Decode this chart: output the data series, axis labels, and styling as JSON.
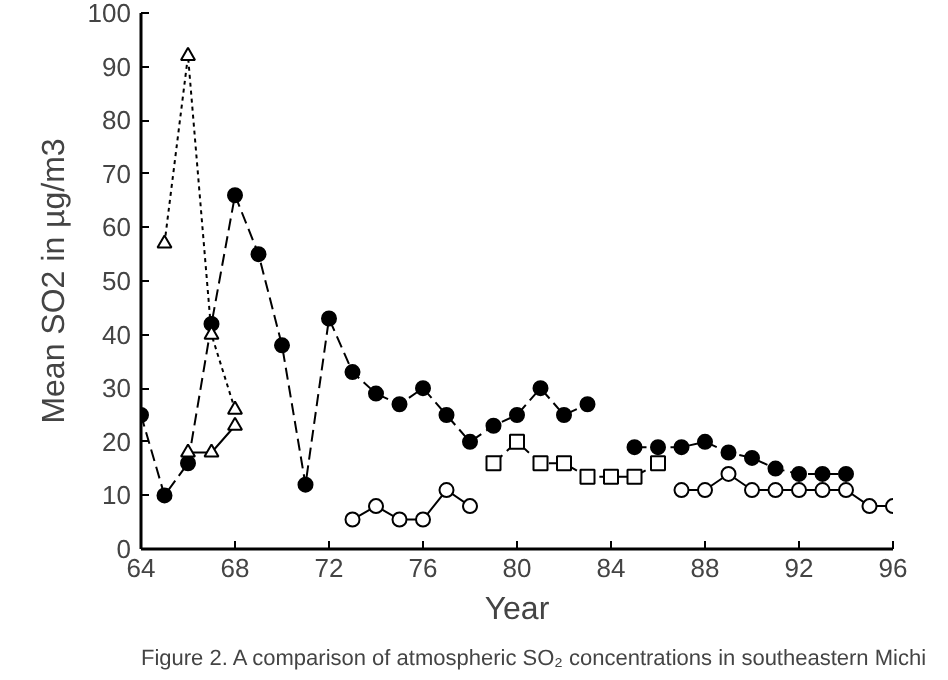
{
  "chart_data": {
    "type": "line",
    "xlabel": "Year",
    "ylabel": "Mean SO2 in µg/m3",
    "annotations": [
      "Figure 2.    A comparison of atmospheric SO₂ concentrations in southeastern Michi"
    ],
    "xlim": [
      64,
      96
    ],
    "xticks": [
      64,
      68,
      72,
      76,
      80,
      84,
      88,
      92,
      96
    ],
    "ylim": [
      0,
      100
    ],
    "yticks": [
      0,
      10,
      20,
      30,
      40,
      50,
      60,
      70,
      80,
      90,
      100
    ],
    "grid": false,
    "series": [
      {
        "color": "#000000",
        "marker": "circle",
        "line_style": "dashed",
        "x": [
          64,
          65,
          66,
          67,
          68,
          69,
          70,
          71,
          72,
          73,
          74,
          75,
          76,
          77,
          78,
          79,
          80,
          81,
          82,
          83,
          84,
          85,
          86,
          87,
          88,
          89,
          90,
          91,
          92,
          93,
          94
        ],
        "values": [
          25,
          10,
          16,
          42,
          66,
          55,
          38,
          12,
          43,
          33,
          29,
          27,
          30,
          25,
          20,
          23,
          25,
          30,
          25,
          27,
          null,
          19,
          19,
          19,
          20,
          18,
          17,
          15,
          14,
          14,
          14
        ]
      },
      {
        "color": "#000000",
        "marker": "triangle",
        "line_style": "dotted",
        "x": [
          65,
          66,
          67,
          68
        ],
        "values": [
          57,
          92,
          40,
          26
        ]
      },
      {
        "color": "#000000",
        "marker": "triangle",
        "line_style": "solid",
        "x": [
          66,
          67,
          68
        ],
        "values": [
          18,
          18,
          23
        ]
      },
      {
        "color": "#000000",
        "marker": "circle",
        "line_style": "solid",
        "x": [
          73,
          74,
          75,
          76,
          77,
          78
        ],
        "values": [
          5.5,
          8,
          5.5,
          5.5,
          11,
          8
        ]
      },
      {
        "color": "#000000",
        "marker": "square",
        "line_style": "dashed",
        "x": [
          79,
          80,
          81,
          82,
          83,
          84,
          85,
          86
        ],
        "values": [
          16,
          20,
          16,
          16,
          13.5,
          13.5,
          13.5,
          16
        ]
      },
      {
        "color": "#000000",
        "marker": "circle",
        "line_style": "solid",
        "x": [
          87,
          88,
          89,
          90,
          91,
          92,
          93,
          94,
          95,
          96
        ],
        "values": [
          11,
          11,
          14,
          11,
          11,
          11,
          11,
          11,
          8,
          8
        ]
      }
    ]
  }
}
